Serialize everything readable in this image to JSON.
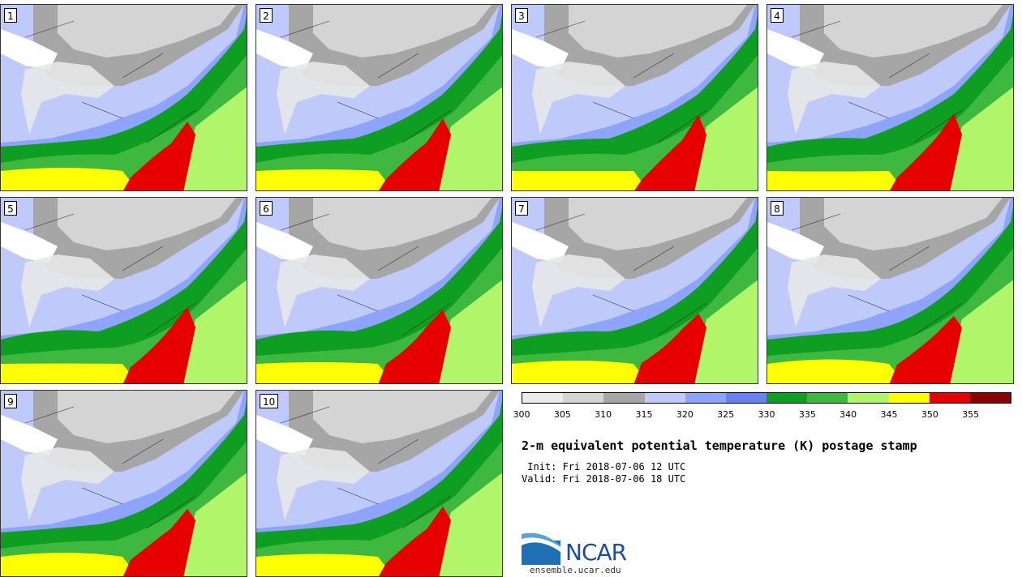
{
  "panels": [
    {
      "number": "1"
    },
    {
      "number": "2"
    },
    {
      "number": "3"
    },
    {
      "number": "4"
    },
    {
      "number": "5"
    },
    {
      "number": "6"
    },
    {
      "number": "7"
    },
    {
      "number": "8"
    },
    {
      "number": "9"
    },
    {
      "number": "10"
    }
  ],
  "colorbar": {
    "colors": [
      "#ececec",
      "#d4d4d4",
      "#a6a6a6",
      "#c0cafa",
      "#8ea3fa",
      "#6a82f1",
      "#0e9e22",
      "#3eb83e",
      "#b0f56a",
      "#ffff00",
      "#e60000",
      "#8a0000"
    ],
    "ticks": [
      "300",
      "305",
      "310",
      "315",
      "320",
      "325",
      "330",
      "335",
      "340",
      "345",
      "350",
      "355"
    ]
  },
  "title": "2-m equivalent potential temperature (K) postage stamp",
  "init": " Init: Fri 2018-07-06 12 UTC",
  "valid": "Valid: Fri 2018-07-06 18 UTC",
  "logo": {
    "text": "NCAR",
    "site": "ensemble.ucar.edu"
  }
}
